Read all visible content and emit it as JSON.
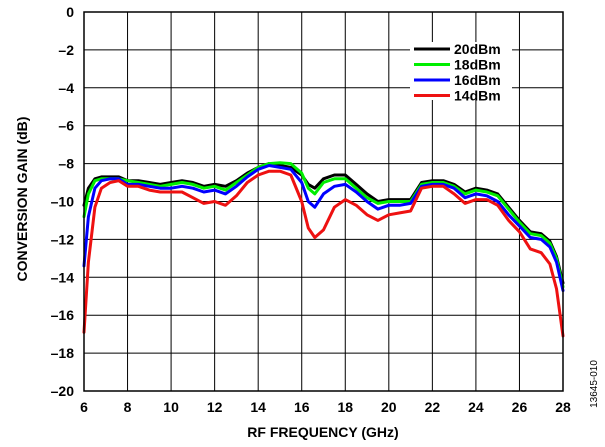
{
  "chart_data": {
    "type": "line",
    "title": "",
    "xlabel": "RF FREQUENCY (GHz)",
    "ylabel": "CONVERSION GAIN (dB)",
    "xlim": [
      6,
      28
    ],
    "ylim": [
      -20,
      0
    ],
    "xticks": [
      6,
      8,
      10,
      12,
      14,
      16,
      18,
      20,
      22,
      24,
      26,
      28
    ],
    "yticks": [
      0,
      -2,
      -4,
      -6,
      -8,
      -10,
      -12,
      -14,
      -16,
      -18,
      -20
    ],
    "xtick_labels": [
      "6",
      "8",
      "10",
      "12",
      "14",
      "16",
      "18",
      "20",
      "22",
      "24",
      "26",
      "28"
    ],
    "ytick_labels": [
      "0",
      "–2",
      "–4",
      "–6",
      "–8",
      "–10",
      "–12",
      "–14",
      "–16",
      "–18",
      "–20"
    ],
    "grid": true,
    "legend_position": "top-right",
    "figure_id": "13645-010",
    "series": [
      {
        "name": "20dBm",
        "color": "#000000",
        "points": [
          [
            6,
            -10.2
          ],
          [
            6.2,
            -9.3
          ],
          [
            6.5,
            -8.8
          ],
          [
            6.8,
            -8.7
          ],
          [
            7.2,
            -8.7
          ],
          [
            7.6,
            -8.7
          ],
          [
            8,
            -8.9
          ],
          [
            8.5,
            -8.9
          ],
          [
            9,
            -9.0
          ],
          [
            9.5,
            -9.1
          ],
          [
            10,
            -9.0
          ],
          [
            10.5,
            -8.9
          ],
          [
            11,
            -9.0
          ],
          [
            11.5,
            -9.2
          ],
          [
            12,
            -9.1
          ],
          [
            12.5,
            -9.2
          ],
          [
            13,
            -8.9
          ],
          [
            13.5,
            -8.5
          ],
          [
            14,
            -8.2
          ],
          [
            14.5,
            -8.0
          ],
          [
            15,
            -8.1
          ],
          [
            15.5,
            -8.2
          ],
          [
            16,
            -8.6
          ],
          [
            16.3,
            -9.1
          ],
          [
            16.6,
            -9.3
          ],
          [
            17,
            -8.8
          ],
          [
            17.5,
            -8.6
          ],
          [
            18,
            -8.6
          ],
          [
            18.5,
            -9.1
          ],
          [
            19,
            -9.6
          ],
          [
            19.5,
            -10.0
          ],
          [
            20,
            -9.9
          ],
          [
            20.5,
            -9.9
          ],
          [
            21,
            -9.9
          ],
          [
            21.5,
            -9.0
          ],
          [
            22,
            -8.9
          ],
          [
            22.5,
            -8.9
          ],
          [
            23,
            -9.1
          ],
          [
            23.5,
            -9.5
          ],
          [
            24,
            -9.3
          ],
          [
            24.5,
            -9.4
          ],
          [
            25,
            -9.6
          ],
          [
            25.5,
            -10.3
          ],
          [
            26,
            -11.0
          ],
          [
            26.5,
            -11.6
          ],
          [
            27,
            -11.7
          ],
          [
            27.4,
            -12.1
          ],
          [
            27.7,
            -12.9
          ],
          [
            28,
            -14.3
          ]
        ]
      },
      {
        "name": "18dBm",
        "color": "#00ee00",
        "points": [
          [
            6,
            -10.8
          ],
          [
            6.2,
            -9.6
          ],
          [
            6.5,
            -8.9
          ],
          [
            6.8,
            -8.8
          ],
          [
            7.2,
            -8.8
          ],
          [
            7.6,
            -8.8
          ],
          [
            8,
            -8.9
          ],
          [
            8.5,
            -9.0
          ],
          [
            9,
            -9.1
          ],
          [
            9.5,
            -9.2
          ],
          [
            10,
            -9.1
          ],
          [
            10.5,
            -9.0
          ],
          [
            11,
            -9.1
          ],
          [
            11.5,
            -9.3
          ],
          [
            12,
            -9.2
          ],
          [
            12.5,
            -9.4
          ],
          [
            13,
            -9.0
          ],
          [
            13.5,
            -8.6
          ],
          [
            14,
            -8.2
          ],
          [
            14.5,
            -8.0
          ],
          [
            15,
            -7.95
          ],
          [
            15.5,
            -8.0
          ],
          [
            16,
            -8.5
          ],
          [
            16.3,
            -9.3
          ],
          [
            16.6,
            -9.6
          ],
          [
            17,
            -9.0
          ],
          [
            17.5,
            -8.8
          ],
          [
            18,
            -8.8
          ],
          [
            18.5,
            -9.3
          ],
          [
            19,
            -9.8
          ],
          [
            19.5,
            -10.1
          ],
          [
            20,
            -10.0
          ],
          [
            20.5,
            -10.0
          ],
          [
            21,
            -10.0
          ],
          [
            21.5,
            -9.1
          ],
          [
            22,
            -9.0
          ],
          [
            22.5,
            -9.0
          ],
          [
            23,
            -9.2
          ],
          [
            23.5,
            -9.6
          ],
          [
            24,
            -9.4
          ],
          [
            24.5,
            -9.5
          ],
          [
            25,
            -9.7
          ],
          [
            25.5,
            -10.4
          ],
          [
            26,
            -11.1
          ],
          [
            26.5,
            -11.7
          ],
          [
            27,
            -11.8
          ],
          [
            27.4,
            -12.2
          ],
          [
            27.7,
            -13.0
          ],
          [
            28,
            -14.5
          ]
        ]
      },
      {
        "name": "16dBm",
        "color": "#0000ff",
        "points": [
          [
            6,
            -13.4
          ],
          [
            6.2,
            -10.8
          ],
          [
            6.5,
            -9.3
          ],
          [
            6.8,
            -8.9
          ],
          [
            7.2,
            -8.8
          ],
          [
            7.6,
            -8.8
          ],
          [
            8,
            -9.1
          ],
          [
            8.5,
            -9.1
          ],
          [
            9,
            -9.2
          ],
          [
            9.5,
            -9.3
          ],
          [
            10,
            -9.3
          ],
          [
            10.5,
            -9.2
          ],
          [
            11,
            -9.3
          ],
          [
            11.5,
            -9.5
          ],
          [
            12,
            -9.4
          ],
          [
            12.5,
            -9.6
          ],
          [
            13,
            -9.2
          ],
          [
            13.5,
            -8.7
          ],
          [
            14,
            -8.3
          ],
          [
            14.5,
            -8.1
          ],
          [
            15,
            -8.2
          ],
          [
            15.5,
            -8.3
          ],
          [
            16,
            -9.0
          ],
          [
            16.3,
            -10.0
          ],
          [
            16.6,
            -10.3
          ],
          [
            17,
            -9.6
          ],
          [
            17.5,
            -9.2
          ],
          [
            18,
            -9.1
          ],
          [
            18.5,
            -9.5
          ],
          [
            19,
            -10.0
          ],
          [
            19.5,
            -10.4
          ],
          [
            20,
            -10.2
          ],
          [
            20.5,
            -10.2
          ],
          [
            21,
            -10.1
          ],
          [
            21.5,
            -9.2
          ],
          [
            22,
            -9.1
          ],
          [
            22.5,
            -9.1
          ],
          [
            23,
            -9.3
          ],
          [
            23.5,
            -9.8
          ],
          [
            24,
            -9.6
          ],
          [
            24.5,
            -9.7
          ],
          [
            25,
            -10.0
          ],
          [
            25.5,
            -10.7
          ],
          [
            26,
            -11.3
          ],
          [
            26.5,
            -11.9
          ],
          [
            27,
            -12.0
          ],
          [
            27.4,
            -12.4
          ],
          [
            27.7,
            -13.2
          ],
          [
            28,
            -14.7
          ]
        ]
      },
      {
        "name": "14dBm",
        "color": "#ee1111",
        "points": [
          [
            6,
            -16.9
          ],
          [
            6.2,
            -13.2
          ],
          [
            6.5,
            -10.3
          ],
          [
            6.8,
            -9.3
          ],
          [
            7.2,
            -9.0
          ],
          [
            7.6,
            -8.9
          ],
          [
            8,
            -9.2
          ],
          [
            8.5,
            -9.2
          ],
          [
            9,
            -9.4
          ],
          [
            9.5,
            -9.5
          ],
          [
            10,
            -9.5
          ],
          [
            10.5,
            -9.5
          ],
          [
            11,
            -9.8
          ],
          [
            11.5,
            -10.1
          ],
          [
            12,
            -10.0
          ],
          [
            12.5,
            -10.2
          ],
          [
            13,
            -9.7
          ],
          [
            13.5,
            -9.0
          ],
          [
            14,
            -8.6
          ],
          [
            14.5,
            -8.4
          ],
          [
            15,
            -8.4
          ],
          [
            15.5,
            -8.6
          ],
          [
            16,
            -10.0
          ],
          [
            16.3,
            -11.4
          ],
          [
            16.6,
            -11.9
          ],
          [
            17,
            -11.5
          ],
          [
            17.5,
            -10.3
          ],
          [
            18,
            -9.9
          ],
          [
            18.5,
            -10.2
          ],
          [
            19,
            -10.7
          ],
          [
            19.5,
            -11.0
          ],
          [
            20,
            -10.7
          ],
          [
            20.5,
            -10.6
          ],
          [
            21,
            -10.5
          ],
          [
            21.5,
            -9.3
          ],
          [
            22,
            -9.2
          ],
          [
            22.5,
            -9.2
          ],
          [
            23,
            -9.6
          ],
          [
            23.5,
            -10.1
          ],
          [
            24,
            -9.9
          ],
          [
            24.5,
            -9.9
          ],
          [
            25,
            -10.2
          ],
          [
            25.5,
            -11.0
          ],
          [
            26,
            -11.6
          ],
          [
            26.5,
            -12.5
          ],
          [
            27,
            -12.7
          ],
          [
            27.4,
            -13.3
          ],
          [
            27.7,
            -14.6
          ],
          [
            28,
            -17.1
          ]
        ]
      }
    ]
  }
}
